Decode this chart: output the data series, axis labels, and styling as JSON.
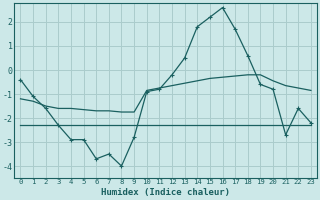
{
  "title": "",
  "xlabel": "Humidex (Indice chaleur)",
  "bg_color": "#cce8e8",
  "grid_color": "#aacccc",
  "line_color": "#1a6060",
  "x_values": [
    0,
    1,
    2,
    3,
    4,
    5,
    6,
    7,
    8,
    9,
    10,
    11,
    12,
    13,
    14,
    15,
    16,
    17,
    18,
    19,
    20,
    21,
    22,
    23
  ],
  "curve1": [
    -0.4,
    -1.1,
    -1.6,
    -2.3,
    -2.9,
    -2.9,
    -3.7,
    -3.5,
    -4.0,
    -2.8,
    -0.9,
    -0.8,
    -0.2,
    0.5,
    1.8,
    2.2,
    2.6,
    1.7,
    0.6,
    -0.6,
    -0.8,
    -2.7,
    -1.6,
    -2.2
  ],
  "curve2": [
    -1.2,
    -1.3,
    -1.5,
    -1.6,
    -1.6,
    -1.65,
    -1.7,
    -1.7,
    -1.75,
    -1.75,
    -0.85,
    -0.75,
    -0.65,
    -0.55,
    -0.45,
    -0.35,
    -0.3,
    -0.25,
    -0.2,
    -0.2,
    -0.45,
    -0.65,
    -0.75,
    -0.85
  ],
  "curve3": [
    -2.3,
    -2.3,
    -2.3,
    -2.3,
    -2.3,
    -2.3,
    -2.3,
    -2.3,
    -2.3,
    -2.3,
    -2.3,
    -2.3,
    -2.3,
    -2.3,
    -2.3,
    -2.3,
    -2.3,
    -2.3,
    -2.3,
    -2.3,
    -2.3,
    -2.3,
    -2.3,
    -2.3
  ],
  "ylim": [
    -4.5,
    2.8
  ],
  "yticks": [
    -4,
    -3,
    -2,
    -1,
    0,
    1,
    2
  ],
  "xticks": [
    0,
    1,
    2,
    3,
    4,
    5,
    6,
    7,
    8,
    9,
    10,
    11,
    12,
    13,
    14,
    15,
    16,
    17,
    18,
    19,
    20,
    21,
    22,
    23
  ]
}
